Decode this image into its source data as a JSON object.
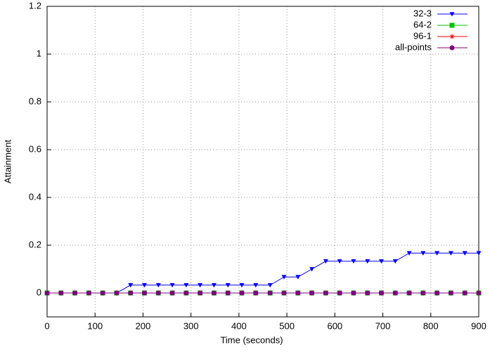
{
  "chart_data": {
    "type": "line",
    "xlabel": "Time (seconds)",
    "ylabel": "Attainment",
    "x": [
      0,
      29,
      58,
      87,
      116,
      145,
      174,
      203,
      232,
      261,
      290,
      319,
      348,
      377,
      406,
      435,
      465,
      494,
      523,
      552,
      581,
      610,
      639,
      668,
      697,
      726,
      755,
      784,
      813,
      842,
      871,
      900
    ],
    "series": [
      {
        "name": "32-3",
        "color": "#0000ff",
        "marker": "triangle-down",
        "values": [
          0,
          0,
          0,
          0,
          0,
          0,
          0.033,
          0.033,
          0.033,
          0.033,
          0.033,
          0.033,
          0.033,
          0.033,
          0.033,
          0.033,
          0.033,
          0.067,
          0.067,
          0.1,
          0.133,
          0.133,
          0.133,
          0.133,
          0.133,
          0.133,
          0.167,
          0.167,
          0.167,
          0.167,
          0.167,
          0.167
        ]
      },
      {
        "name": "64-2",
        "color": "#00c000",
        "marker": "square",
        "values": [
          0,
          0,
          0,
          0,
          0,
          0,
          0,
          0,
          0,
          0,
          0,
          0,
          0,
          0,
          0,
          0,
          0,
          0,
          0,
          0,
          0,
          0,
          0,
          0,
          0,
          0,
          0,
          0,
          0,
          0,
          0,
          0
        ]
      },
      {
        "name": "96-1",
        "color": "#ff0000",
        "marker": "star",
        "values": [
          0,
          0,
          0,
          0,
          0,
          0,
          0,
          0,
          0,
          0,
          0,
          0,
          0,
          0,
          0,
          0,
          0,
          0,
          0,
          0,
          0,
          0,
          0,
          0,
          0,
          0,
          0,
          0,
          0,
          0,
          0,
          0
        ]
      },
      {
        "name": "all-points",
        "color": "#800080",
        "marker": "circle",
        "values": [
          0,
          0,
          0,
          0,
          0,
          0,
          0,
          0,
          0,
          0,
          0,
          0,
          0,
          0,
          0,
          0,
          0,
          0,
          0,
          0,
          0,
          0,
          0,
          0,
          0,
          0,
          0,
          0,
          0,
          0,
          0,
          0
        ]
      }
    ],
    "xlim": [
      0,
      900
    ],
    "xticks": [
      0,
      100,
      200,
      300,
      400,
      500,
      600,
      700,
      800,
      900
    ],
    "ylim": [
      -0.1,
      1.2
    ],
    "yticks": [
      0,
      0.2,
      0.4,
      0.6,
      0.8,
      1,
      1.2
    ],
    "grid": true,
    "legend": "top-right"
  }
}
